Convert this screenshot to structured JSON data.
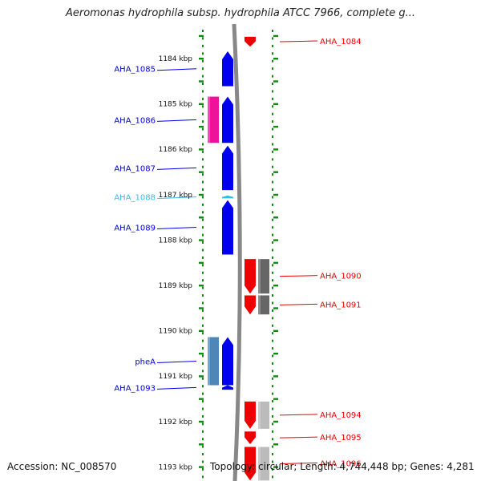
{
  "title": "Aeromonas hydrophila subsp. hydrophila ATCC 7966, complete g...",
  "footer": {
    "accession": "Accession: NC_008570",
    "topology": "Topology: circular; Length: 4,744,448 bp; Genes: 4,281"
  },
  "colors": {
    "reverse_gene": "#0000ee",
    "forward_gene": "#ee0000",
    "short_gene": "#33bbee",
    "pseudo_or_rna": "#ee1199",
    "grey_dark": "#666666",
    "grey_light": "#bbbbbb",
    "steel": "#4f86b8",
    "backbone": "#888888",
    "tick": "#118811"
  },
  "scale_labels": [
    {
      "label": "1184 kbp",
      "kbp": 1184
    },
    {
      "label": "1185 kbp",
      "kbp": 1185
    },
    {
      "label": "1186 kbp",
      "kbp": 1186
    },
    {
      "label": "1187 kbp",
      "kbp": 1187
    },
    {
      "label": "1188 kbp",
      "kbp": 1188
    },
    {
      "label": "1189 kbp",
      "kbp": 1189
    },
    {
      "label": "1190 kbp",
      "kbp": 1190
    },
    {
      "label": "1191 kbp",
      "kbp": 1191
    },
    {
      "label": "1192 kbp",
      "kbp": 1192
    },
    {
      "label": "1193 kbp",
      "kbp": 1193
    }
  ],
  "genes": [
    {
      "label": "AHA_1084",
      "strand": "+",
      "start_kbp": 1183.52,
      "end_kbp": 1183.74,
      "color": "#ee0000"
    },
    {
      "label": "AHA_1085",
      "strand": "-",
      "start_kbp": 1183.84,
      "end_kbp": 1184.61,
      "color": "#0000ee"
    },
    {
      "label": "AHA_1086",
      "strand": "-",
      "start_kbp": 1184.84,
      "end_kbp": 1185.86,
      "color": "#0000ee"
    },
    {
      "label": "AHA_1087",
      "strand": "-",
      "start_kbp": 1185.92,
      "end_kbp": 1186.9,
      "color": "#0000ee"
    },
    {
      "label": "AHA_1088",
      "strand": "-",
      "start_kbp": 1187.02,
      "end_kbp": 1187.08,
      "color": "#33bbee"
    },
    {
      "label": "AHA_1089",
      "strand": "-",
      "start_kbp": 1187.12,
      "end_kbp": 1188.32,
      "color": "#0000ee"
    },
    {
      "label": "AHA_1090",
      "strand": "+",
      "start_kbp": 1188.42,
      "end_kbp": 1189.18,
      "color": "#ee0000"
    },
    {
      "label": "AHA_1091",
      "strand": "+",
      "start_kbp": 1189.22,
      "end_kbp": 1189.64,
      "color": "#ee0000"
    },
    {
      "label": "pheA",
      "strand": "-",
      "start_kbp": 1190.14,
      "end_kbp": 1191.2,
      "color": "#0000ee"
    },
    {
      "label": "AHA_1093",
      "strand": "-",
      "start_kbp": 1191.2,
      "end_kbp": 1191.3,
      "color": "#0000ee"
    },
    {
      "label": "AHA_1094",
      "strand": "+",
      "start_kbp": 1191.56,
      "end_kbp": 1192.16,
      "color": "#ee0000"
    },
    {
      "label": "AHA_1095",
      "strand": "+",
      "start_kbp": 1192.22,
      "end_kbp": 1192.5,
      "color": "#ee0000"
    },
    {
      "label": "AHA_1096",
      "strand": "+",
      "start_kbp": 1192.56,
      "end_kbp": 1193.3,
      "color": "#ee0000"
    }
  ],
  "features": [
    {
      "type": "pseudo",
      "strand": "-",
      "start_kbp": 1184.84,
      "end_kbp": 1185.86,
      "color": "#ee1199"
    },
    {
      "type": "grey",
      "strand": "+",
      "start_kbp": 1188.42,
      "end_kbp": 1189.18,
      "color": "#666666"
    },
    {
      "type": "grey",
      "strand": "+",
      "start_kbp": 1189.22,
      "end_kbp": 1189.64,
      "color": "#666666"
    },
    {
      "type": "steel",
      "strand": "-",
      "start_kbp": 1190.14,
      "end_kbp": 1191.2,
      "color": "#4f86b8"
    },
    {
      "type": "grey",
      "strand": "+",
      "start_kbp": 1191.56,
      "end_kbp": 1192.16,
      "color": "#bbbbbb"
    },
    {
      "type": "grey",
      "strand": "+",
      "start_kbp": 1192.56,
      "end_kbp": 1193.3,
      "color": "#bbbbbb"
    }
  ]
}
